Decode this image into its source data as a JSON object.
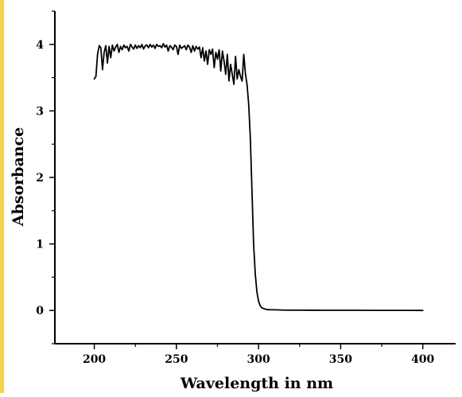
{
  "chart_data": {
    "type": "line",
    "xlabel": "Wavelength in nm",
    "ylabel": "Absorbance",
    "xlim": [
      176,
      420
    ],
    "ylim": [
      -0.5,
      4.5
    ],
    "xticks": [
      200,
      250,
      300,
      350,
      400
    ],
    "yticks": [
      0,
      1,
      2,
      3,
      4
    ],
    "grid": false,
    "legend": "none",
    "series": [
      {
        "color": "#000000",
        "x": [
          200,
          201,
          202,
          203,
          204,
          205,
          206,
          207,
          208,
          209,
          210,
          211,
          212,
          213,
          214,
          215,
          216,
          217,
          218,
          219,
          220,
          221,
          222,
          223,
          224,
          225,
          226,
          227,
          228,
          229,
          230,
          231,
          232,
          233,
          234,
          235,
          236,
          237,
          238,
          239,
          240,
          241,
          242,
          243,
          244,
          245,
          246,
          247,
          248,
          249,
          250,
          251,
          252,
          253,
          254,
          255,
          256,
          257,
          258,
          259,
          260,
          261,
          262,
          263,
          264,
          265,
          266,
          267,
          268,
          269,
          270,
          271,
          272,
          273,
          274,
          275,
          276,
          277,
          278,
          279,
          280,
          281,
          282,
          283,
          284,
          285,
          286,
          287,
          288,
          289,
          290,
          291,
          292,
          293,
          294,
          295,
          296,
          297,
          298,
          299,
          300,
          301,
          302,
          303,
          304,
          305,
          306,
          307,
          308,
          310,
          315,
          320,
          325,
          330,
          335,
          340,
          350,
          360,
          370,
          380,
          390,
          400
        ],
        "y": [
          3.48,
          3.52,
          3.85,
          3.98,
          3.95,
          3.62,
          3.88,
          3.98,
          3.72,
          3.97,
          3.8,
          3.99,
          3.9,
          3.96,
          4.0,
          3.88,
          3.97,
          3.92,
          3.99,
          3.95,
          3.97,
          3.9,
          4.0,
          3.96,
          3.93,
          3.99,
          3.94,
          3.98,
          3.95,
          4.0,
          3.93,
          3.98,
          3.99,
          3.95,
          4.0,
          3.96,
          3.99,
          3.94,
          4.0,
          3.97,
          3.98,
          3.95,
          4.01,
          3.96,
          3.99,
          3.9,
          3.98,
          3.96,
          3.92,
          3.99,
          3.97,
          3.85,
          3.99,
          3.94,
          3.96,
          3.98,
          3.92,
          3.99,
          3.96,
          3.88,
          3.98,
          3.9,
          3.97,
          3.93,
          3.96,
          3.8,
          3.95,
          3.75,
          3.9,
          3.7,
          3.92,
          3.85,
          3.93,
          3.65,
          3.88,
          3.78,
          3.92,
          3.6,
          3.9,
          3.75,
          3.55,
          3.85,
          3.45,
          3.7,
          3.55,
          3.4,
          3.82,
          3.48,
          3.62,
          3.52,
          3.45,
          3.85,
          3.56,
          3.4,
          3.1,
          2.6,
          1.8,
          1.0,
          0.55,
          0.28,
          0.14,
          0.07,
          0.04,
          0.03,
          0.02,
          0.015,
          0.012,
          0.01,
          0.01,
          0.01,
          0.005,
          0.004,
          0.004,
          0.003,
          0.003,
          0.002,
          0.002,
          0.002,
          0.001,
          0.001,
          0.001,
          0.0
        ]
      }
    ]
  }
}
